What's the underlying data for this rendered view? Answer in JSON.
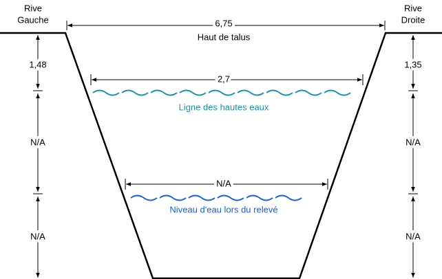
{
  "banks": {
    "left": [
      "Rive",
      "Gauche"
    ],
    "right": [
      "Rive",
      "Droite"
    ]
  },
  "top_width": {
    "value": "6,75",
    "label": "Haut de talus"
  },
  "high_water": {
    "width": "2,7",
    "label": "Ligne des hautes eaux"
  },
  "survey_water": {
    "width": "N/A",
    "label": "Niveau d'eau lors du relevé"
  },
  "left_depths": [
    "1,48",
    "N/A",
    "N/A"
  ],
  "right_depths": [
    "1,35",
    "N/A",
    "N/A"
  ]
}
